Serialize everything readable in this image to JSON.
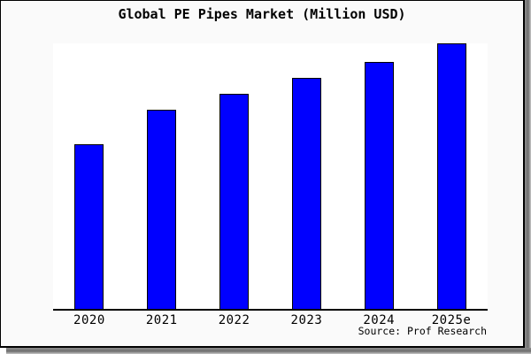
{
  "figure": {
    "background": "#fafafa",
    "plot_background": "#ffffff",
    "bar_fill": "#0000ff",
    "bar_border": "#000000",
    "axis_color": "#000000",
    "text_color": "#000000"
  },
  "chart_data": {
    "type": "bar",
    "title": "Global PE Pipes Market (Million USD)",
    "categories": [
      "2020",
      "2021",
      "2022",
      "2023",
      "2024",
      "2025e"
    ],
    "values": [
      62,
      75,
      81,
      87,
      93,
      100
    ],
    "xlabel": "",
    "ylabel": "",
    "ylim": [
      0,
      100
    ],
    "grid": false,
    "legend": "none",
    "y_axis_ticks_visible": false,
    "source_note": "Source: Prof Research"
  }
}
